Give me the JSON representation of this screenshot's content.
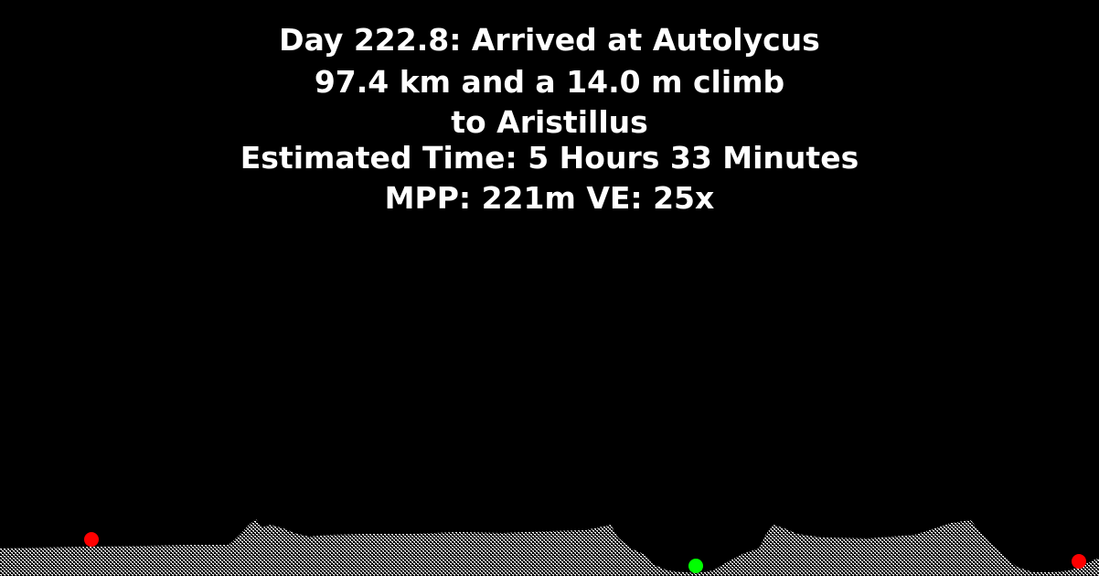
{
  "caption": {
    "line1": "Day 222.8: Arrived at Autolycus",
    "line2": "97.4 km and a 14.0 m climb",
    "line3": "to Aristillus",
    "line4": "Estimated Time: 5 Hours 33 Minutes",
    "line5": "MPP: 221m VE: 25x"
  },
  "colors": {
    "background": "#000000",
    "text": "#ffffff",
    "terrain": "#ffffff",
    "start_marker": "#ff0000",
    "current_marker": "#00ff00",
    "destination_marker": "#ff0000"
  },
  "markers": {
    "start": "start-marker",
    "current": "current-position-marker",
    "destination": "destination-marker"
  }
}
